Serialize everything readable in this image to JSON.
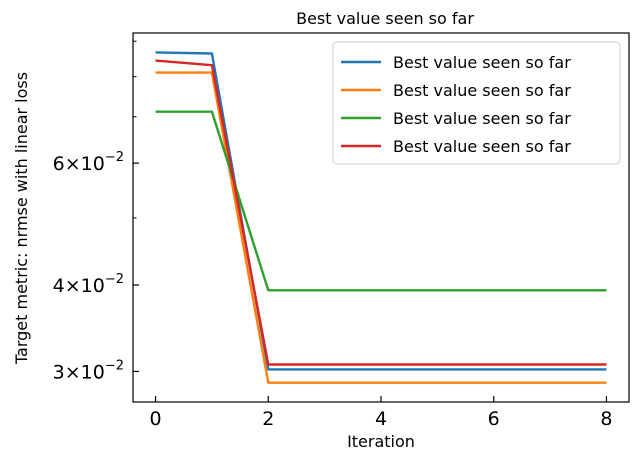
{
  "chart_data": {
    "type": "line",
    "title": "Best value seen so far",
    "xlabel": "Iteration",
    "ylabel": "Target metric: nrmse with linear loss",
    "yscale": "log",
    "xlim": [
      -0.4,
      8.4
    ],
    "ylim": [
      0.0271,
      0.0925
    ],
    "grid": false,
    "legend_position": "top-right",
    "x": [
      0,
      1,
      2,
      3,
      4,
      5,
      6,
      7,
      8
    ],
    "x_ticks": [
      0,
      2,
      4,
      6,
      8
    ],
    "x_tick_labels": [
      "0",
      "2",
      "4",
      "6",
      "8"
    ],
    "y_ticks": [
      0.03,
      0.04,
      0.06
    ],
    "y_tick_labels": [
      {
        "mant": "3",
        "exp": "−2"
      },
      {
        "mant": "4",
        "exp": "−2"
      },
      {
        "mant": "6",
        "exp": "−2"
      }
    ],
    "y_minor_ticks": [
      0.05,
      0.07,
      0.08,
      0.09
    ],
    "series": [
      {
        "name": "Best value seen so far",
        "color": "#1f77b4",
        "values": [
          0.0867,
          0.0864,
          0.0302,
          0.0302,
          0.0302,
          0.0302,
          0.0302,
          0.0302,
          0.0302
        ]
      },
      {
        "name": "Best value seen so far",
        "color": "#ff7f0e",
        "values": [
          0.0811,
          0.0811,
          0.0289,
          0.0289,
          0.0289,
          0.0289,
          0.0289,
          0.0289,
          0.0289
        ]
      },
      {
        "name": "Best value seen so far",
        "color": "#2ca02c",
        "values": [
          0.0712,
          0.0712,
          0.0393,
          0.0393,
          0.0393,
          0.0393,
          0.0393,
          0.0393,
          0.0393
        ]
      },
      {
        "name": "Best value seen so far",
        "color": "#d62728",
        "values": [
          0.0844,
          0.0831,
          0.0307,
          0.0307,
          0.0307,
          0.0307,
          0.0307,
          0.0307,
          0.0307
        ]
      }
    ]
  }
}
